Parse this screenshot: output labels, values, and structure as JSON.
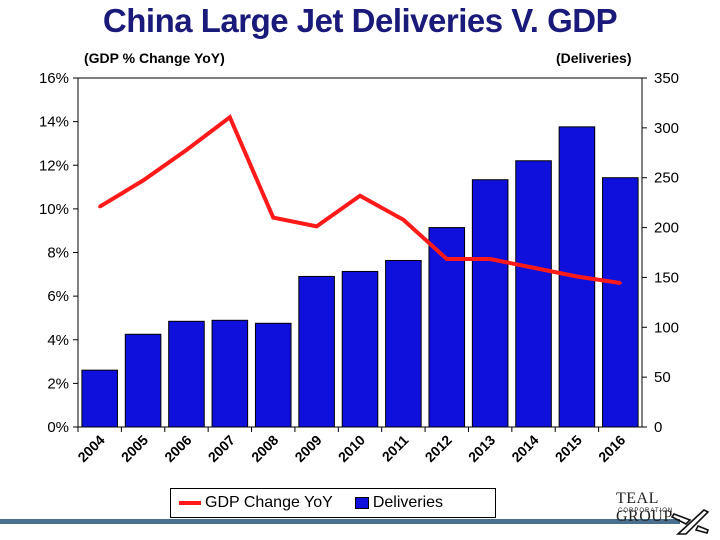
{
  "title": "China Large Jet Deliveries V. GDP",
  "left_axis_title": "(GDP % Change YoY)",
  "right_axis_title": "(Deliveries)",
  "legend": {
    "line_label": "GDP Change YoY",
    "bar_label": "Deliveries"
  },
  "logo": {
    "brand": "TEAL GROUP",
    "sub": "CORPORATION"
  },
  "colors": {
    "bar": "#1010dd",
    "bar_edge": "#000000",
    "line": "#ff1a1a",
    "title": "#1a1a7a",
    "footer": "#4a6f8f"
  },
  "chart_data": {
    "type": "bar+line",
    "categories": [
      "2004",
      "2005",
      "2006",
      "2007",
      "2008",
      "2009",
      "2010",
      "2011",
      "2012",
      "2013",
      "2014",
      "2015",
      "2016"
    ],
    "series": [
      {
        "name": "Deliveries",
        "type": "bar",
        "axis": "right",
        "values": [
          57,
          93,
          106,
          107,
          104,
          151,
          156,
          167,
          200,
          248,
          267,
          301,
          250
        ]
      },
      {
        "name": "GDP Change YoY",
        "type": "line",
        "axis": "left",
        "values": [
          10.1,
          11.3,
          12.7,
          14.2,
          9.6,
          9.2,
          10.6,
          9.5,
          7.7,
          7.7,
          7.3,
          6.9,
          6.6
        ]
      }
    ],
    "left_axis": {
      "min": 0,
      "max": 16,
      "step": 2,
      "tick_labels": [
        "0%",
        "2%",
        "4%",
        "6%",
        "8%",
        "10%",
        "12%",
        "14%",
        "16%"
      ]
    },
    "right_axis": {
      "min": 0,
      "max": 350,
      "step": 50,
      "tick_labels": [
        "0",
        "50",
        "100",
        "150",
        "200",
        "250",
        "300",
        "350"
      ]
    },
    "legend_position": "bottom"
  }
}
